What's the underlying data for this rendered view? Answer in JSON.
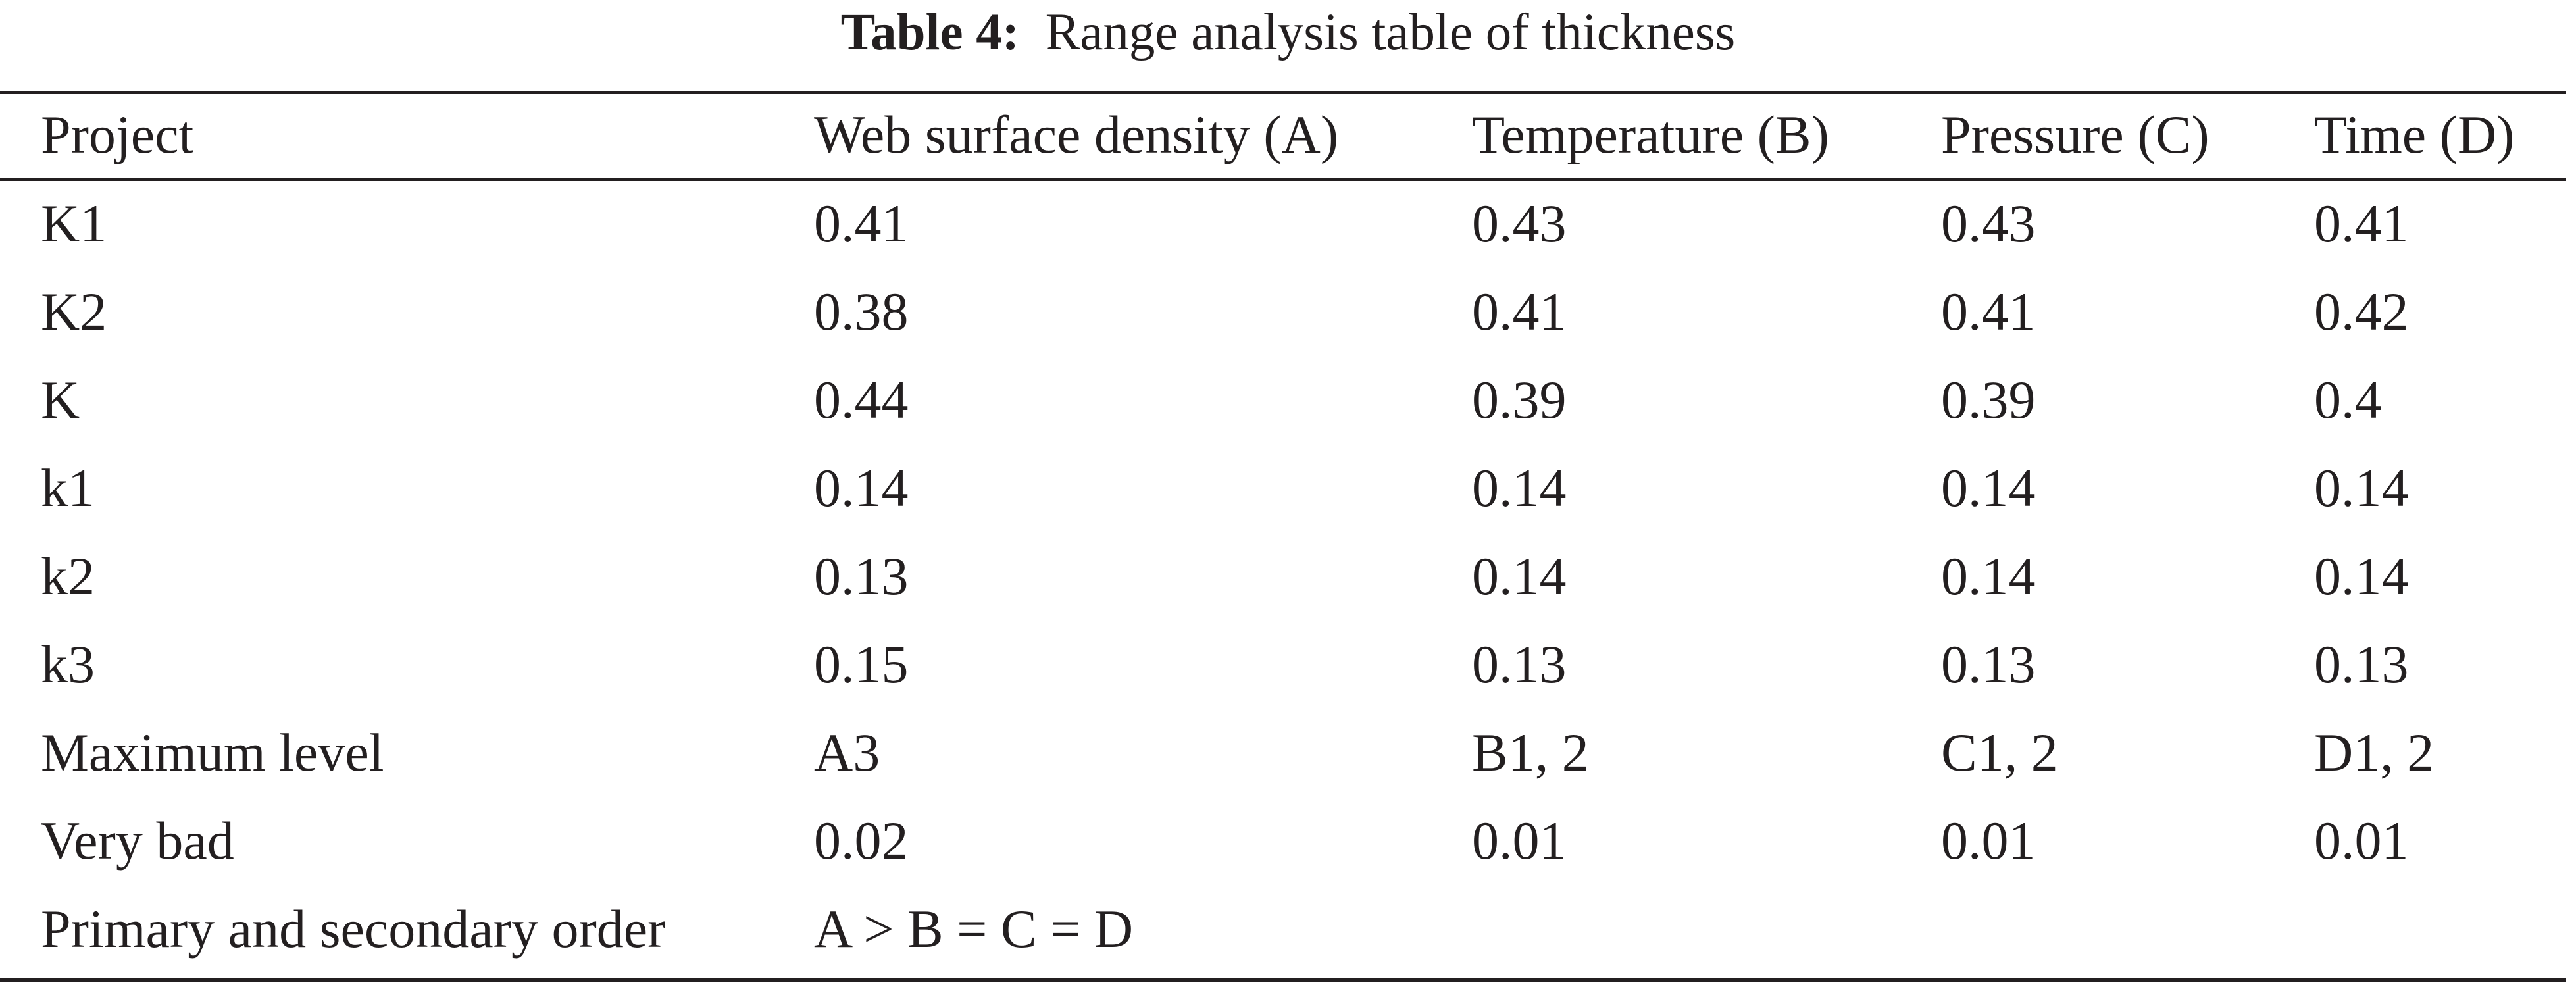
{
  "caption": {
    "label": "Table 4:",
    "text": "Range analysis table of thickness"
  },
  "table": {
    "headers": [
      "Project",
      "Web surface density (A)",
      "Temperature (B)",
      "Pressure (C)",
      "Time (D)"
    ],
    "rows": [
      [
        "K1",
        "0.41",
        "0.43",
        "0.43",
        "0.41"
      ],
      [
        "K2",
        "0.38",
        "0.41",
        "0.41",
        "0.42"
      ],
      [
        "K",
        "0.44",
        "0.39",
        "0.39",
        "0.4"
      ],
      [
        "k1",
        "0.14",
        "0.14",
        "0.14",
        "0.14"
      ],
      [
        "k2",
        "0.13",
        "0.14",
        "0.14",
        "0.14"
      ],
      [
        "k3",
        "0.15",
        "0.13",
        "0.13",
        "0.13"
      ],
      [
        "Maximum level",
        "A3",
        "B1, 2",
        "C1, 2",
        "D1, 2"
      ],
      [
        "Very bad",
        "0.02",
        "0.01",
        "0.01",
        "0.01"
      ],
      [
        "Primary and secondary order",
        "A > B = C = D",
        "",
        "",
        ""
      ]
    ]
  }
}
